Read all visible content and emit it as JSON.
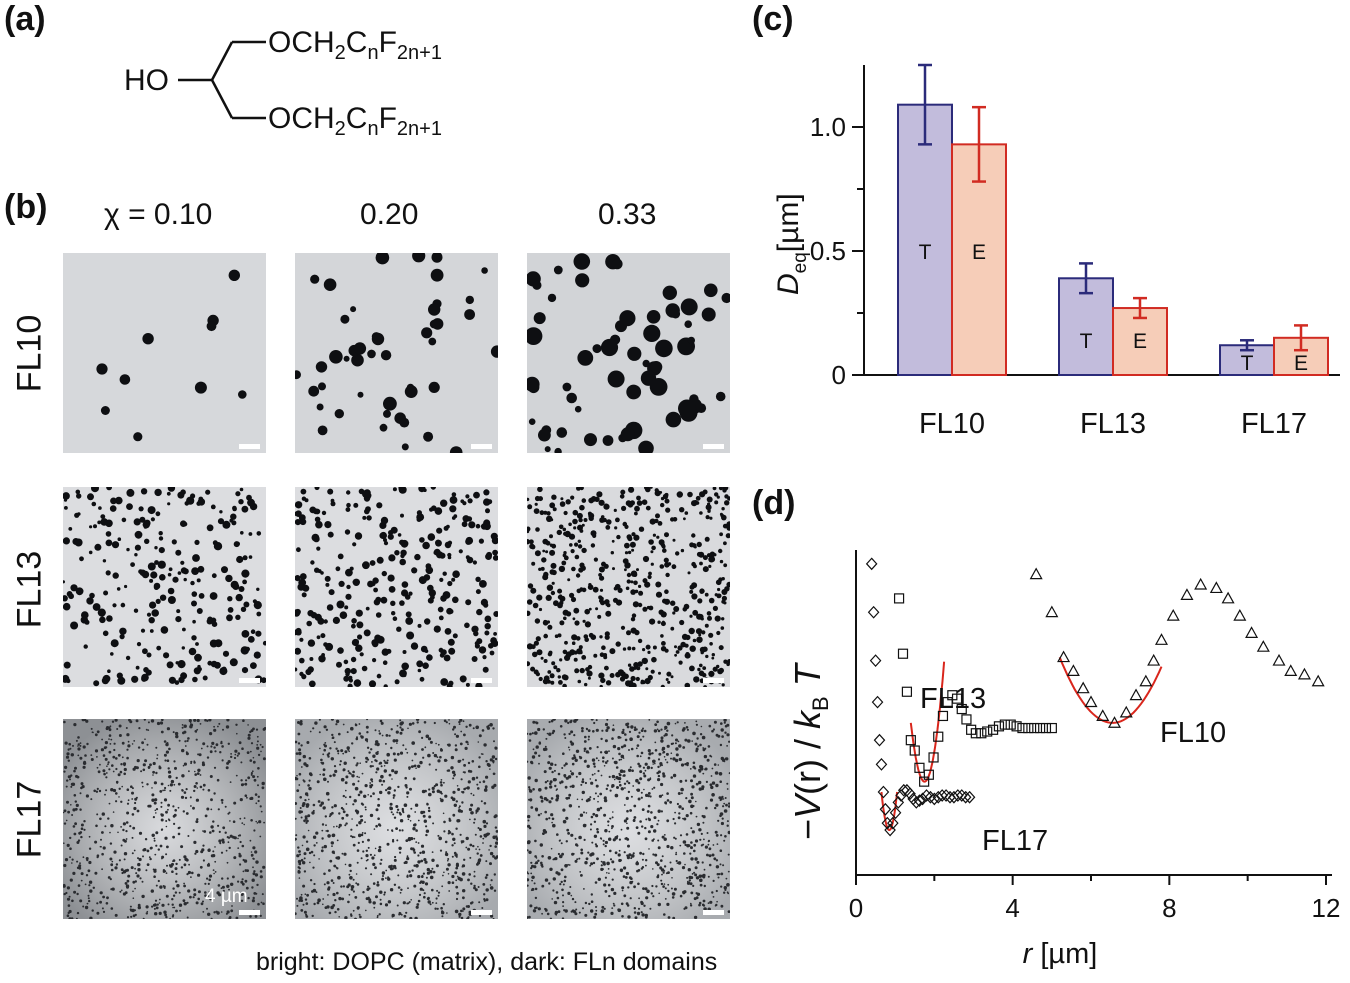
{
  "panels": {
    "a": "(a)",
    "b": "(b)",
    "c": "(c)",
    "d": "(d)"
  },
  "structure": {
    "ho": "HO",
    "top_prefix": "OCH",
    "top_sub2": "2",
    "top_c": "C",
    "top_subn": "n",
    "top_f": "F",
    "top_sub2n1": "2n+1",
    "bottom_prefix": "OCH",
    "bottom_sub2": "2",
    "bottom_c": "C",
    "bottom_subn": "n",
    "bottom_f": "F",
    "bottom_sub2n1": "2n+1"
  },
  "micrographs": {
    "chi_labels": [
      "χ = 0.10",
      "0.20",
      "0.33"
    ],
    "row_labels": [
      "FL10",
      "FL13",
      "FL17"
    ],
    "scale_label": "4 µm",
    "caption": "bright: DOPC (matrix), dark: FLn domains"
  },
  "chart_data": [
    {
      "type": "bar",
      "panel": "(c)",
      "categories": [
        "FL10",
        "FL13",
        "FL17"
      ],
      "series": [
        {
          "name": "T",
          "values": [
            1.09,
            0.39,
            0.12
          ],
          "errors": [
            0.16,
            0.06,
            0.02
          ],
          "color": "#6a6a9a",
          "fill": "#c2bcdc",
          "border": "#2b2b7a"
        },
        {
          "name": "E",
          "values": [
            0.93,
            0.27,
            0.15
          ],
          "errors": [
            0.15,
            0.04,
            0.05
          ],
          "color": "#d93a2b",
          "fill": "#f6cdb8",
          "border": "#d12b22"
        }
      ],
      "ylabel_main": "D",
      "ylabel_sub": "eq",
      "ylabel_unit": "[µm]",
      "ylim": [
        0,
        1.25
      ],
      "yticks": [
        0,
        0.5,
        1.0
      ],
      "ytick_labels": [
        "0",
        "0.5",
        "1.0"
      ],
      "grid": false
    },
    {
      "type": "scatter",
      "panel": "(d)",
      "xlabel_var": "r",
      "xlabel_unit": "[µm]",
      "ylabel_minus": "−",
      "ylabel_v": "V",
      "ylabel_r": "(r) /",
      "ylabel_k": "k",
      "ylabel_b": "B",
      "ylabel_t": "T",
      "xlim": [
        0,
        12
      ],
      "xticks": [
        0,
        4,
        8,
        12
      ],
      "xtick_labels": [
        "0",
        "4",
        "8",
        "12"
      ],
      "fit_color": "#d9261c",
      "series": [
        {
          "name": "FL10",
          "marker": "triangle",
          "x": [
            4.6,
            5.0,
            5.3,
            5.55,
            5.8,
            6.0,
            6.3,
            6.6,
            6.9,
            7.15,
            7.4,
            7.6,
            7.8,
            8.1,
            8.45,
            8.8,
            9.2,
            9.5,
            9.8,
            10.1,
            10.4,
            10.8,
            11.1,
            11.45,
            11.8
          ],
          "y": [
            8.7,
            7.6,
            6.3,
            5.9,
            5.4,
            5.0,
            4.6,
            4.4,
            4.7,
            5.2,
            5.6,
            6.2,
            6.8,
            7.5,
            8.1,
            8.4,
            8.3,
            8.0,
            7.5,
            7.0,
            6.6,
            6.2,
            5.9,
            5.8,
            5.6
          ],
          "fit_x": [
            5.2,
            7.8
          ],
          "fit_center": 6.55,
          "fit_min": 4.4,
          "fit_top": 6.3
        },
        {
          "name": "FL13",
          "marker": "square",
          "x": [
            1.1,
            1.2,
            1.3,
            1.4,
            1.5,
            1.62,
            1.74,
            1.86,
            1.98,
            2.1,
            2.22,
            2.34,
            2.46,
            2.58,
            2.7,
            2.82,
            2.94,
            3.06,
            3.2,
            3.35,
            3.5,
            3.65,
            3.8,
            3.95,
            4.1,
            4.25,
            4.4,
            4.55,
            4.7,
            4.85,
            5.0
          ],
          "y": [
            8.0,
            6.4,
            5.3,
            3.9,
            3.6,
            3.1,
            2.7,
            2.9,
            3.4,
            4.0,
            4.6,
            5.0,
            5.2,
            5.1,
            4.8,
            4.5,
            4.2,
            4.1,
            4.1,
            4.15,
            4.2,
            4.3,
            4.35,
            4.35,
            4.3,
            4.25,
            4.25,
            4.25,
            4.25,
            4.25,
            4.25
          ],
          "fit_x": [
            1.4,
            2.25
          ],
          "fit_center": 1.75,
          "fit_min": 2.7,
          "fit_top": 4.4
        },
        {
          "name": "FL17",
          "marker": "diamond",
          "x": [
            0.4,
            0.45,
            0.5,
            0.55,
            0.6,
            0.65,
            0.7,
            0.75,
            0.8,
            0.87,
            0.94,
            1.01,
            1.08,
            1.15,
            1.22,
            1.3,
            1.38,
            1.46,
            1.54,
            1.62,
            1.7,
            1.8,
            1.9,
            2.0,
            2.1,
            2.2,
            2.3,
            2.4,
            2.5,
            2.6,
            2.7,
            2.8,
            2.9
          ],
          "y": [
            9.0,
            7.6,
            6.2,
            5.0,
            3.9,
            3.2,
            2.4,
            1.9,
            1.5,
            1.3,
            1.5,
            1.8,
            2.1,
            2.3,
            2.45,
            2.45,
            2.35,
            2.2,
            2.1,
            2.15,
            2.2,
            2.3,
            2.25,
            2.2,
            2.25,
            2.3,
            2.3,
            2.25,
            2.25,
            2.3,
            2.3,
            2.25,
            2.25
          ],
          "fit_x": [
            0.65,
            1.05
          ],
          "fit_center": 0.85,
          "fit_min": 1.3,
          "fit_top": 2.4
        }
      ]
    }
  ]
}
